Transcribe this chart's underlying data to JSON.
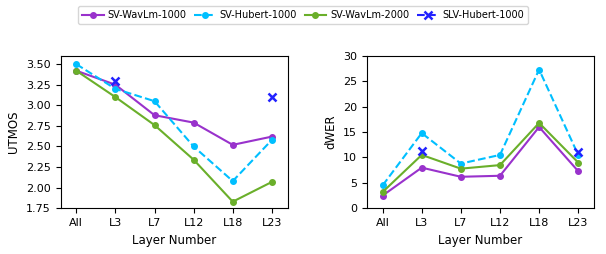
{
  "x_labels": [
    "All",
    "L3",
    "L7",
    "L12",
    "L18",
    "L23"
  ],
  "utmos": {
    "SV-WavLm-1000": [
      3.42,
      3.25,
      2.88,
      2.79,
      2.52,
      2.62
    ],
    "SV-Hubert-1000": [
      3.5,
      3.2,
      3.05,
      2.5,
      2.08,
      2.58
    ],
    "SV-WavLm-2000": [
      3.42,
      3.1,
      2.76,
      2.34,
      1.83,
      2.07
    ],
    "SLV-Hubert-1000": [
      null,
      3.3,
      null,
      null,
      null,
      3.1
    ]
  },
  "dwer": {
    "SV-WavLm-1000": [
      2.5,
      8.0,
      6.2,
      6.4,
      16.0,
      7.3
    ],
    "SV-Hubert-1000": [
      4.5,
      14.8,
      8.8,
      10.5,
      27.3,
      10.5
    ],
    "SV-WavLm-2000": [
      3.2,
      10.5,
      7.8,
      8.5,
      16.8,
      9.0
    ],
    "SLV-Hubert-1000": [
      null,
      11.2,
      null,
      null,
      null,
      11.0
    ]
  },
  "colors": {
    "SV-WavLm-1000": "#9932CC",
    "SV-Hubert-1000": "#00BFFF",
    "SV-WavLm-2000": "#6AAF2A",
    "SLV-Hubert-1000": "#2222FF"
  },
  "markers": {
    "SV-WavLm-1000": "o",
    "SV-Hubert-1000": "o",
    "SV-WavLm-2000": "o",
    "SLV-Hubert-1000": "x"
  },
  "linestyles": {
    "SV-WavLm-1000": "-",
    "SV-Hubert-1000": "--",
    "SV-WavLm-2000": "-",
    "SLV-Hubert-1000": "--"
  },
  "utmos_ylim": [
    1.75,
    3.6
  ],
  "utmos_yticks": [
    1.75,
    2.0,
    2.25,
    2.5,
    2.75,
    3.0,
    3.25,
    3.5
  ],
  "dwer_ylim": [
    0,
    30
  ],
  "dwer_yticks": [
    0,
    5,
    10,
    15,
    20,
    25,
    30
  ],
  "ylabel_left": "UTMOS",
  "ylabel_right": "dWER",
  "xlabel": "Layer Number",
  "legend_order": [
    "SV-WavLm-1000",
    "SV-Hubert-1000",
    "SV-WavLm-2000",
    "SLV-Hubert-1000"
  ],
  "figsize": [
    6.06,
    2.54
  ],
  "dpi": 100,
  "legend_fontsize": 7.0,
  "axis_fontsize": 8,
  "label_fontsize": 8.5,
  "markersize_main": 4,
  "markersize_slv": 6,
  "linewidth": 1.5
}
